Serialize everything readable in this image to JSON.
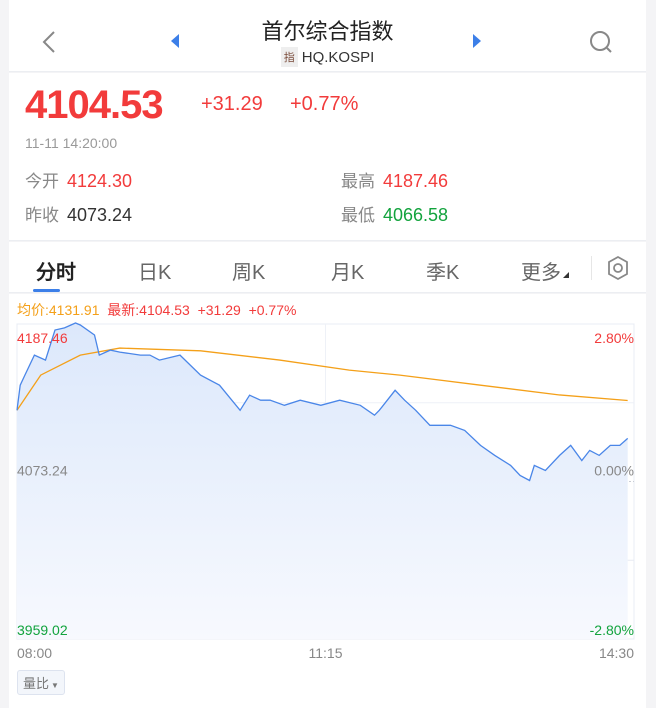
{
  "header": {
    "title": "首尔综合指数",
    "type_tag": "指",
    "code": "HQ.KOSPI",
    "icons": [
      "chevron-left-icon",
      "prev-triangle-icon",
      "next-triangle-icon",
      "search-icon"
    ]
  },
  "quote": {
    "price": "4104.53",
    "change": "+31.29",
    "change_pct": "+0.77%",
    "time": "11-11 14:20:00",
    "open_label": "今开",
    "open": "4124.30",
    "high_label": "最高",
    "high": "4187.46",
    "prev_close_label": "昨收",
    "prev_close": "4073.24",
    "low_label": "最低",
    "low": "4066.58"
  },
  "colors": {
    "up": "#f23b3b",
    "down": "#12a33d",
    "price_line": "#4a86e8",
    "avg_line": "#f4a019",
    "accent": "#3c7fe8"
  },
  "tabs": [
    {
      "label": "分时",
      "active": true
    },
    {
      "label": "日K"
    },
    {
      "label": "周K"
    },
    {
      "label": "月K"
    },
    {
      "label": "季K"
    },
    {
      "label": "更多"
    }
  ],
  "chart_info": {
    "avg": "均价:4131.91",
    "latest": "最新:4104.53",
    "change": "+31.29",
    "change_pct": "+0.77%"
  },
  "indicator_button": "量比",
  "chart_data": {
    "type": "line",
    "y_left_labels": [
      "4187.46",
      "4073.24",
      "3959.02"
    ],
    "y_right_labels": [
      "2.80%",
      "0.00%",
      "-2.80%"
    ],
    "x_labels": [
      "08:00",
      "11:15",
      "14:30"
    ],
    "ylim": [
      3959.02,
      4187.46
    ],
    "xlim": [
      "08:00",
      "14:30"
    ],
    "baseline": 4073.24,
    "series": [
      {
        "key": "price",
        "points": [
          [
            "08:00",
            4124.9
          ],
          [
            "08:02",
            4143.1
          ],
          [
            "08:05",
            4150.4
          ],
          [
            "08:11",
            4164.9
          ],
          [
            "08:18",
            4161.3
          ],
          [
            "08:24",
            4183.1
          ],
          [
            "08:30",
            4184.6
          ],
          [
            "08:37",
            4188.2
          ],
          [
            "08:40",
            4186.7
          ],
          [
            "08:49",
            4179.5
          ],
          [
            "08:52",
            4164.9
          ],
          [
            "08:59",
            4168.5
          ],
          [
            "09:05",
            4167.1
          ],
          [
            "09:18",
            4164.9
          ],
          [
            "09:24",
            4164.9
          ],
          [
            "09:30",
            4161.3
          ],
          [
            "09:43",
            4164.9
          ],
          [
            "09:56",
            4150.4
          ],
          [
            "10:08",
            4143.1
          ],
          [
            "10:21",
            4124.9
          ],
          [
            "10:27",
            4135.8
          ],
          [
            "10:34",
            4132.2
          ],
          [
            "10:40",
            4132.2
          ],
          [
            "10:49",
            4128.5
          ],
          [
            "10:59",
            4132.2
          ],
          [
            "11:12",
            4128.5
          ],
          [
            "11:24",
            4132.2
          ],
          [
            "11:37",
            4128.5
          ],
          [
            "11:46",
            4121.3
          ],
          [
            "11:49",
            4124.9
          ],
          [
            "11:59",
            4139.4
          ],
          [
            "12:05",
            4132.2
          ],
          [
            "12:12",
            4124.9
          ],
          [
            "12:21",
            4114.0
          ],
          [
            "12:34",
            4114.0
          ],
          [
            "12:43",
            4110.3
          ],
          [
            "12:53",
            4099.4
          ],
          [
            "13:02",
            4092.2
          ],
          [
            "13:12",
            4084.9
          ],
          [
            "13:18",
            4077.6
          ],
          [
            "13:24",
            4074.0
          ],
          [
            "13:27",
            4084.9
          ],
          [
            "13:34",
            4081.2
          ],
          [
            "13:43",
            4092.2
          ],
          [
            "13:50",
            4099.4
          ],
          [
            "13:57",
            4088.5
          ],
          [
            "14:02",
            4095.8
          ],
          [
            "14:08",
            4092.2
          ],
          [
            "14:15",
            4099.4
          ],
          [
            "14:21",
            4099.4
          ],
          [
            "14:26",
            4104.5
          ]
        ]
      },
      {
        "key": "avg",
        "points": [
          [
            "08:00",
            4124.9
          ],
          [
            "08:15",
            4150.4
          ],
          [
            "08:40",
            4164.9
          ],
          [
            "09:05",
            4170.0
          ],
          [
            "09:56",
            4168.0
          ],
          [
            "10:46",
            4161.3
          ],
          [
            "11:30",
            4154.0
          ],
          [
            "12:02",
            4150.4
          ],
          [
            "12:53",
            4143.1
          ],
          [
            "13:43",
            4136.0
          ],
          [
            "14:26",
            4132.0
          ]
        ]
      }
    ]
  }
}
